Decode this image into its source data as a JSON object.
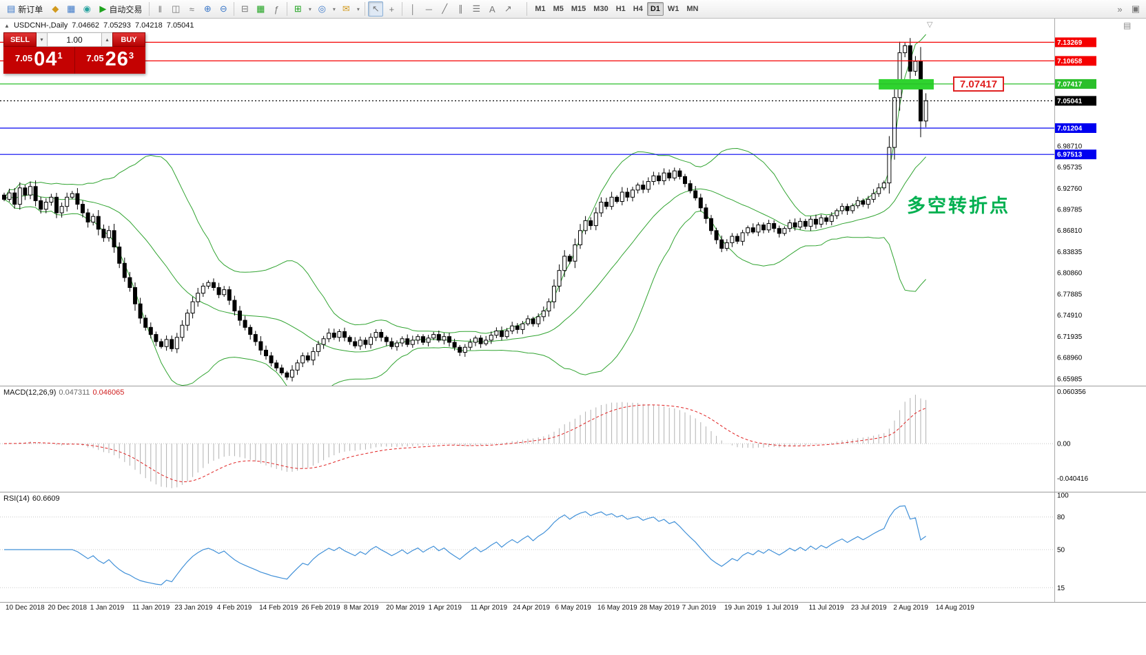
{
  "toolbar": {
    "labels": {
      "new_order": "新订单",
      "autotrading": "自动交易"
    },
    "glyphs": {
      "new_order": "▤",
      "wallet": "◆",
      "reports": "▦",
      "community": "◉",
      "play": "▶",
      "bars": "‖",
      "candles": "◫",
      "line": "≈",
      "zoom_in": "⊕",
      "zoom_out": "⊖",
      "tile": "⊟",
      "grid": "▦",
      "indicators": "ƒ",
      "new_chart": "⊞",
      "profiles": "◎",
      "mail": "✉",
      "caret": "▾",
      "cursor": "↖",
      "crosshair": "+",
      "vline": "│",
      "hline": "─",
      "trendline": "╱",
      "channel": "∥",
      "fibonacci": "☰",
      "text_tool": "A",
      "arrows": "↗",
      "overflow": "»",
      "window": "▣",
      "doc": "▤",
      "collapse": "▲",
      "shift_marker": "▽",
      "spin_up": "▴",
      "spin_down": "▾"
    },
    "timeframes": [
      "M1",
      "M5",
      "M15",
      "M30",
      "H1",
      "H4",
      "D1",
      "W1",
      "MN"
    ],
    "active_timeframe": "D1"
  },
  "chart": {
    "symbol_period": "USDCNH-,Daily",
    "ohlc": {
      "open": "7.04662",
      "high": "7.05293",
      "low": "7.04218",
      "close": "7.05041"
    },
    "annotation": {
      "text": "多空转折点",
      "color": "#00b050"
    },
    "price_tag": {
      "text": "7.07417"
    }
  },
  "trade_panel": {
    "sell_label": "SELL",
    "buy_label": "BUY",
    "volume": "1.00",
    "bid": {
      "prefix": "7.05",
      "big": "04",
      "sup": "1"
    },
    "ask": {
      "prefix": "7.05",
      "big": "26",
      "sup": "3"
    }
  },
  "macd_panel": {
    "title": "MACD(12,26,9)",
    "main_value": "0.047311",
    "signal_value": "0.046065",
    "scale": [
      "0.060356",
      "0.00",
      "-0.040416"
    ]
  },
  "rsi_panel": {
    "title": "RSI(14)",
    "value": "60.6609",
    "scale": [
      {
        "v": 100,
        "label": "100"
      },
      {
        "v": 80,
        "label": "80"
      },
      {
        "v": 50,
        "label": "50"
      },
      {
        "v": 15,
        "label": "15"
      }
    ]
  },
  "chart_data": {
    "type": "candlestick",
    "symbol": "USDCNH",
    "timeframe": "Daily",
    "ylim": [
      6.65,
      7.166
    ],
    "closes": [
      6.912,
      6.921,
      6.905,
      6.928,
      6.918,
      6.93,
      6.91,
      6.898,
      6.908,
      6.915,
      6.893,
      6.902,
      6.915,
      6.92,
      6.905,
      6.893,
      6.88,
      6.888,
      6.87,
      6.858,
      6.868,
      6.845,
      6.822,
      6.802,
      6.788,
      6.765,
      6.745,
      6.732,
      6.722,
      6.712,
      6.705,
      6.715,
      6.702,
      6.718,
      6.735,
      6.752,
      6.768,
      6.78,
      6.79,
      6.795,
      6.788,
      6.778,
      6.785,
      6.77,
      6.755,
      6.742,
      6.732,
      6.722,
      6.712,
      6.7,
      6.692,
      6.682,
      6.675,
      6.668,
      6.662,
      6.672,
      6.682,
      6.692,
      6.686,
      6.698,
      6.708,
      6.716,
      6.724,
      6.718,
      6.726,
      6.718,
      6.712,
      6.706,
      6.714,
      6.708,
      6.718,
      6.725,
      6.718,
      6.712,
      6.705,
      6.71,
      6.716,
      6.708,
      6.714,
      6.719,
      6.711,
      6.717,
      6.722,
      6.714,
      6.719,
      6.711,
      6.704,
      6.697,
      6.704,
      6.711,
      6.717,
      6.709,
      6.714,
      6.721,
      6.727,
      6.719,
      6.727,
      6.734,
      6.729,
      6.737,
      6.744,
      6.737,
      6.747,
      6.755,
      6.768,
      6.79,
      6.812,
      6.832,
      6.825,
      6.848,
      6.868,
      6.882,
      6.875,
      6.893,
      6.908,
      6.902,
      6.915,
      6.909,
      6.922,
      6.915,
      6.925,
      6.932,
      6.926,
      6.937,
      6.945,
      6.938,
      6.949,
      6.942,
      6.952,
      6.944,
      6.934,
      6.924,
      6.914,
      6.9,
      6.885,
      6.868,
      6.855,
      6.843,
      6.851,
      6.86,
      6.853,
      6.865,
      6.872,
      6.866,
      6.876,
      6.869,
      6.878,
      6.871,
      6.864,
      6.871,
      6.879,
      6.873,
      6.881,
      6.874,
      6.884,
      6.877,
      6.886,
      6.881,
      6.889,
      6.896,
      6.902,
      6.896,
      6.903,
      6.91,
      6.905,
      6.912,
      6.92,
      6.928,
      6.935,
      6.985,
      7.055,
      7.118,
      7.128,
      7.092,
      7.106,
      7.022,
      7.0504
    ],
    "style": {
      "bull": "#ffffff",
      "bear": "#000000",
      "wick": "#000000"
    },
    "levels": [
      {
        "price": 7.13269,
        "label": "7.13269",
        "color": "#f50000",
        "style": "solid",
        "type": "resistance"
      },
      {
        "price": 7.10658,
        "label": "7.10658",
        "color": "#f50000",
        "style": "solid",
        "type": "resistance2"
      },
      {
        "price": 7.07417,
        "label": "7.07417",
        "color": "#2abf2a",
        "style": "solid",
        "type": "pivot"
      },
      {
        "price": 7.05041,
        "label": "7.05041",
        "color": "#000000",
        "style": "dotted",
        "type": "last-price"
      },
      {
        "price": 7.01204,
        "label": "7.01204",
        "color": "#0000f0",
        "style": "solid",
        "type": "support"
      },
      {
        "price": 6.97513,
        "label": "6.97513",
        "color": "#0000f0",
        "style": "solid",
        "type": "support2"
      }
    ],
    "scale_labels": [
      "6.98710",
      "6.95735",
      "6.92760",
      "6.89785",
      "6.86810",
      "6.83835",
      "6.80860",
      "6.77885",
      "6.74910",
      "6.71935",
      "6.68960",
      "6.65985"
    ],
    "highlight_zone": {
      "price": 7.07417,
      "from_bar": 167,
      "to_x": 1355,
      "color": "#2fd32f"
    },
    "indicators": {
      "bollinger": {
        "period": 20,
        "deviation": 2,
        "color": "#2fa32f"
      },
      "macd": {
        "fast": 12,
        "slow": 26,
        "signal": 9,
        "histogram_color": "#b0b0b0",
        "signal_color": "#e02020"
      },
      "rsi": {
        "period": 14,
        "color": "#4090d8",
        "levels": [
          80,
          50,
          15
        ]
      }
    },
    "x_labels": [
      "10 Dec 2018",
      "20 Dec 2018",
      "1 Jan 2019",
      "11 Jan 2019",
      "23 Jan 2019",
      "4 Feb 2019",
      "14 Feb 2019",
      "26 Feb 2019",
      "8 Mar 2019",
      "20 Mar 2019",
      "1 Apr 2019",
      "11 Apr 2019",
      "24 Apr 2019",
      "6 May 2019",
      "16 May 2019",
      "28 May 2019",
      "7 Jun 2019",
      "19 Jun 2019",
      "1 Jul 2019",
      "11 Jul 2019",
      "23 Jul 2019",
      "2 Aug 2019",
      "14 Aug 2019"
    ]
  }
}
